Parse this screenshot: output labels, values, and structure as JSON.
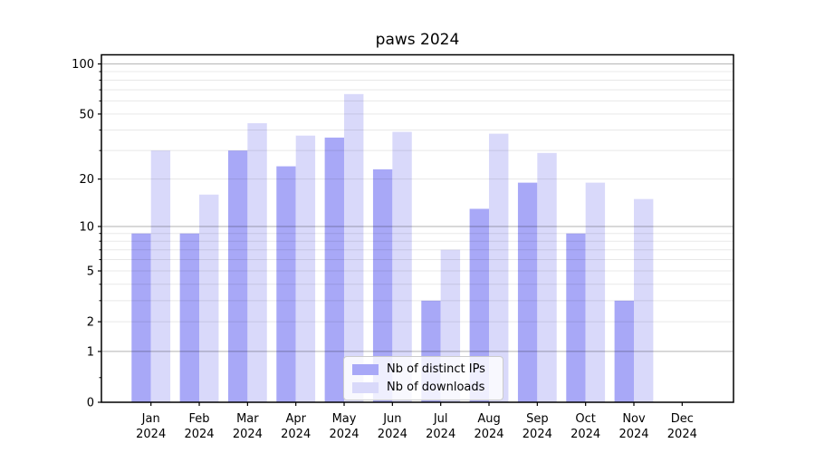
{
  "title": "paws 2024",
  "colors": {
    "ips_bar": "#a8a8f7",
    "downloads_bar": "#d9d9fa",
    "grid_major": "rgba(0,0,0,0.30)",
    "grid_minor": "rgba(0,0,0,0.09)",
    "axis": "#000000",
    "tick_label": "#000000",
    "legend_border": "#cccccc"
  },
  "legend": {
    "items": [
      {
        "label": "Nb of distinct IPs",
        "series": "ips"
      },
      {
        "label": "Nb of downloads",
        "series": "downloads"
      }
    ],
    "position": "lower center"
  },
  "chart_data": {
    "type": "bar",
    "title": "paws 2024",
    "categories": [
      "Jan",
      "Feb",
      "Mar",
      "Apr",
      "May",
      "Jun",
      "Jul",
      "Aug",
      "Sep",
      "Oct",
      "Nov",
      "Dec"
    ],
    "x_second_line": "2024",
    "series": [
      {
        "name": "Nb of distinct IPs",
        "values": [
          9,
          9,
          30,
          24,
          36,
          23,
          3,
          13,
          19,
          9,
          3,
          0
        ]
      },
      {
        "name": "Nb of downloads",
        "values": [
          30,
          16,
          44,
          37,
          66,
          39,
          7,
          38,
          29,
          19,
          15,
          0
        ]
      }
    ],
    "xlabel": "",
    "ylabel": "",
    "yscale": "log1p",
    "ylim": [
      0,
      113
    ],
    "yticks_labeled": [
      100,
      50,
      20,
      10,
      5,
      2,
      1,
      0
    ],
    "yticks_minor": [
      0.4,
      3,
      4,
      6,
      7,
      8,
      9,
      30,
      40,
      60,
      70,
      80,
      90
    ],
    "grid_major_values": [
      1,
      10,
      100
    ],
    "grid_minor_values": [
      2,
      3,
      4,
      5,
      6,
      7,
      8,
      9,
      20,
      30,
      40,
      50,
      60,
      70,
      80,
      90
    ],
    "grid": true,
    "legend_position": "lower center"
  }
}
